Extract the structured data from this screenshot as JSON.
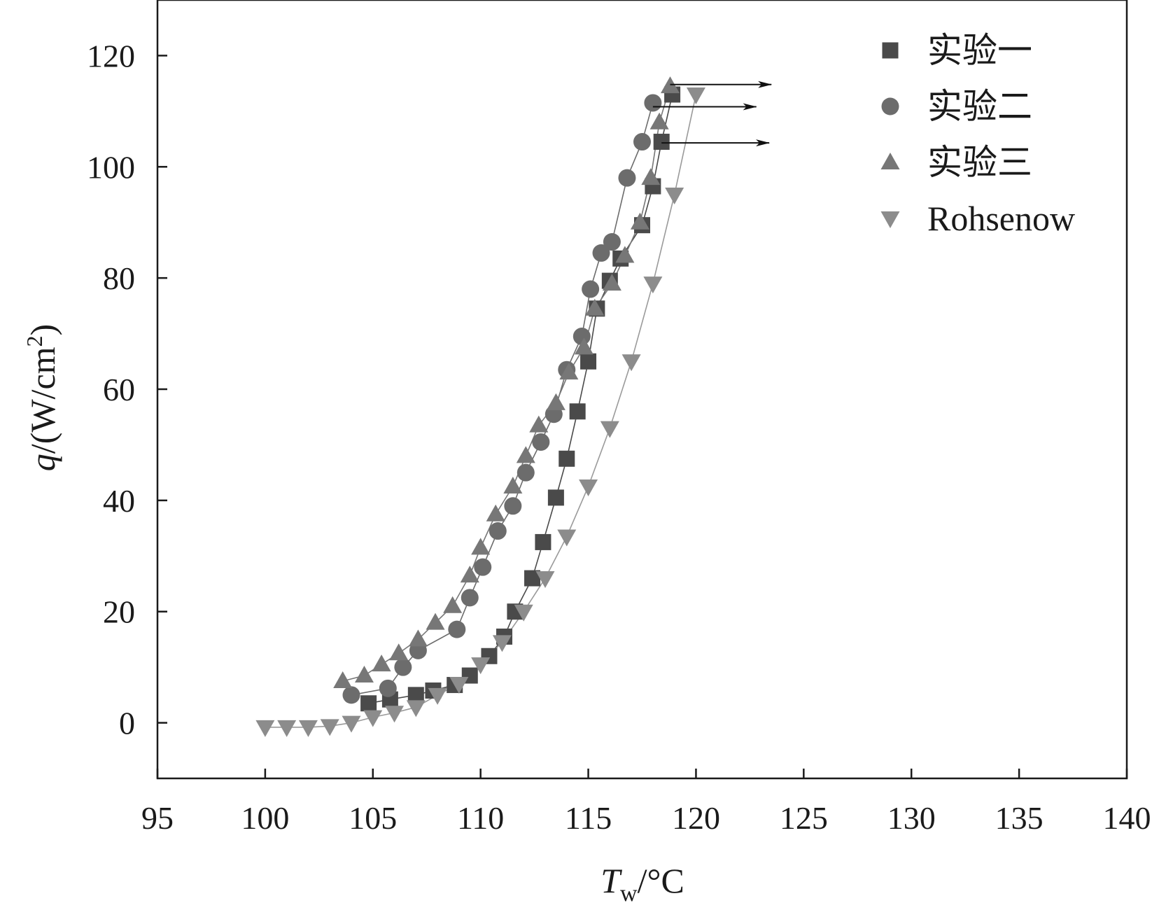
{
  "chart_data": {
    "type": "scatter",
    "xlabel": {
      "main": "T",
      "sub": "w",
      "unit": "/°C"
    },
    "ylabel": {
      "main": "q",
      "unit": "/(W/cm",
      "sup": "2",
      "close": ")"
    },
    "xlim": [
      95,
      140
    ],
    "ylim": [
      -10,
      130
    ],
    "xticks": [
      95,
      100,
      105,
      110,
      115,
      120,
      125,
      130,
      135,
      140
    ],
    "yticks": [
      0,
      20,
      40,
      60,
      80,
      100,
      120
    ],
    "grid": false,
    "legend_position": "top-right",
    "series": [
      {
        "name": "实验一",
        "marker": "square",
        "color": "#4a4a4a",
        "line_color": "#4a4a4a",
        "x": [
          104.8,
          105.8,
          107.0,
          107.8,
          108.8,
          109.5,
          110.4,
          111.1,
          111.6,
          112.4,
          112.9,
          113.5,
          114.0,
          114.5,
          115.0,
          115.4,
          116.0,
          116.5,
          117.5,
          118.0,
          118.4,
          118.9
        ],
        "y": [
          3.5,
          4.2,
          5.0,
          5.8,
          6.8,
          8.5,
          12.0,
          15.5,
          20.0,
          26.0,
          32.5,
          40.5,
          47.5,
          56.0,
          65.0,
          74.5,
          79.5,
          83.5,
          89.5,
          96.5,
          104.5,
          113.0
        ]
      },
      {
        "name": "实验二",
        "marker": "circle",
        "color": "#6c6c6c",
        "line_color": "#6c6c6c",
        "x": [
          104.0,
          105.7,
          106.4,
          107.1,
          108.9,
          109.5,
          110.1,
          110.8,
          111.5,
          112.1,
          112.8,
          113.4,
          114.0,
          114.7,
          115.1,
          115.6,
          116.1,
          116.8,
          117.5,
          118.0
        ],
        "y": [
          5.0,
          6.2,
          10.0,
          13.0,
          16.8,
          22.5,
          28.0,
          34.5,
          39.0,
          45.0,
          50.5,
          55.5,
          63.5,
          69.5,
          78.0,
          84.5,
          86.5,
          98.0,
          104.5,
          111.5
        ]
      },
      {
        "name": "实验三",
        "marker": "triangle-up",
        "color": "#777777",
        "line_color": "#777777",
        "x": [
          103.6,
          104.6,
          105.4,
          106.2,
          107.1,
          107.9,
          108.7,
          109.5,
          110.0,
          110.7,
          111.5,
          112.1,
          112.7,
          113.5,
          114.1,
          114.8,
          115.3,
          116.1,
          116.7,
          117.4,
          117.9,
          118.3,
          118.8
        ],
        "y": [
          7.5,
          8.5,
          10.5,
          12.5,
          15.0,
          18.0,
          21.0,
          26.5,
          31.5,
          37.5,
          42.5,
          48.0,
          53.5,
          57.5,
          63.0,
          67.5,
          74.5,
          79.0,
          84.0,
          90.0,
          98.0,
          108.0,
          114.5
        ]
      },
      {
        "name": "Rohsenow",
        "marker": "triangle-down",
        "color": "#8c8c8c",
        "line_color": "#9a9a9a",
        "x": [
          100.0,
          101.0,
          102.0,
          103.0,
          104.0,
          105.0,
          106.0,
          107.0,
          108.0,
          109.0,
          110.0,
          111.0,
          112.0,
          113.0,
          114.0,
          115.0,
          116.0,
          117.0,
          118.0,
          119.0,
          120.0
        ],
        "y": [
          -0.8,
          -0.8,
          -0.8,
          -0.6,
          0.0,
          1.0,
          1.8,
          2.8,
          5.0,
          7.0,
          10.5,
          14.5,
          20.0,
          26.0,
          33.5,
          42.5,
          53.0,
          65.0,
          79.0,
          95.0,
          113.0
        ]
      }
    ],
    "annotations": [
      {
        "type": "arrow",
        "from": [
          118.8,
          114.8
        ],
        "to": [
          123.5,
          114.8
        ]
      },
      {
        "type": "arrow",
        "from": [
          118.0,
          110.8
        ],
        "to": [
          122.8,
          110.8
        ]
      },
      {
        "type": "arrow",
        "from": [
          118.4,
          104.3
        ],
        "to": [
          123.4,
          104.3
        ]
      }
    ]
  }
}
